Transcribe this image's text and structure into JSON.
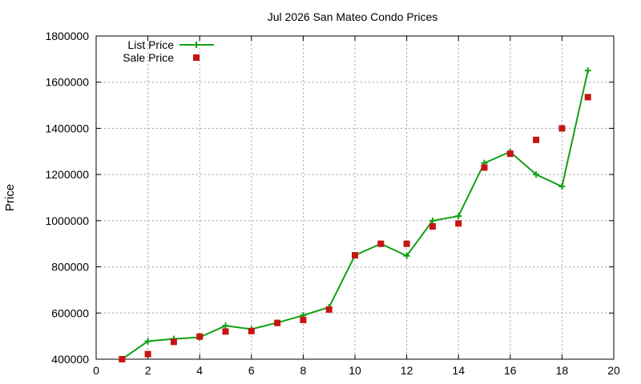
{
  "chart_data": {
    "type": "line",
    "title": "Jul 2026 San Mateo Condo Prices",
    "xlabel": "",
    "ylabel": "Price",
    "xlim": [
      0,
      20
    ],
    "ylim": [
      400000,
      1800000
    ],
    "x_ticks": [
      0,
      2,
      4,
      6,
      8,
      10,
      12,
      14,
      16,
      18,
      20
    ],
    "y_ticks": [
      400000,
      600000,
      800000,
      1000000,
      1200000,
      1400000,
      1600000,
      1800000
    ],
    "grid": true,
    "legend_position": "top-left",
    "series": [
      {
        "name": "List Price",
        "style": "line-with-plus-markers",
        "color": "#12a012",
        "x": [
          1,
          2,
          3,
          4,
          5,
          6,
          7,
          8,
          9,
          10,
          11,
          12,
          13,
          14,
          15,
          16,
          17,
          18,
          19
        ],
        "values": [
          400000,
          478000,
          488000,
          495000,
          545000,
          530000,
          558000,
          590000,
          625000,
          850000,
          900000,
          848000,
          1000000,
          1020000,
          1250000,
          1298000,
          1200000,
          1148000,
          1650000
        ]
      },
      {
        "name": "Sale Price",
        "style": "square-markers",
        "color": "#c81414",
        "x": [
          1,
          2,
          3,
          4,
          5,
          6,
          7,
          8,
          9,
          10,
          11,
          12,
          13,
          14,
          15,
          16,
          17,
          18,
          19
        ],
        "values": [
          400000,
          422000,
          475000,
          498000,
          520000,
          522000,
          557000,
          570000,
          615000,
          850000,
          900000,
          900000,
          975000,
          988000,
          1230000,
          1290000,
          1350000,
          1400000,
          1535000
        ]
      }
    ]
  }
}
